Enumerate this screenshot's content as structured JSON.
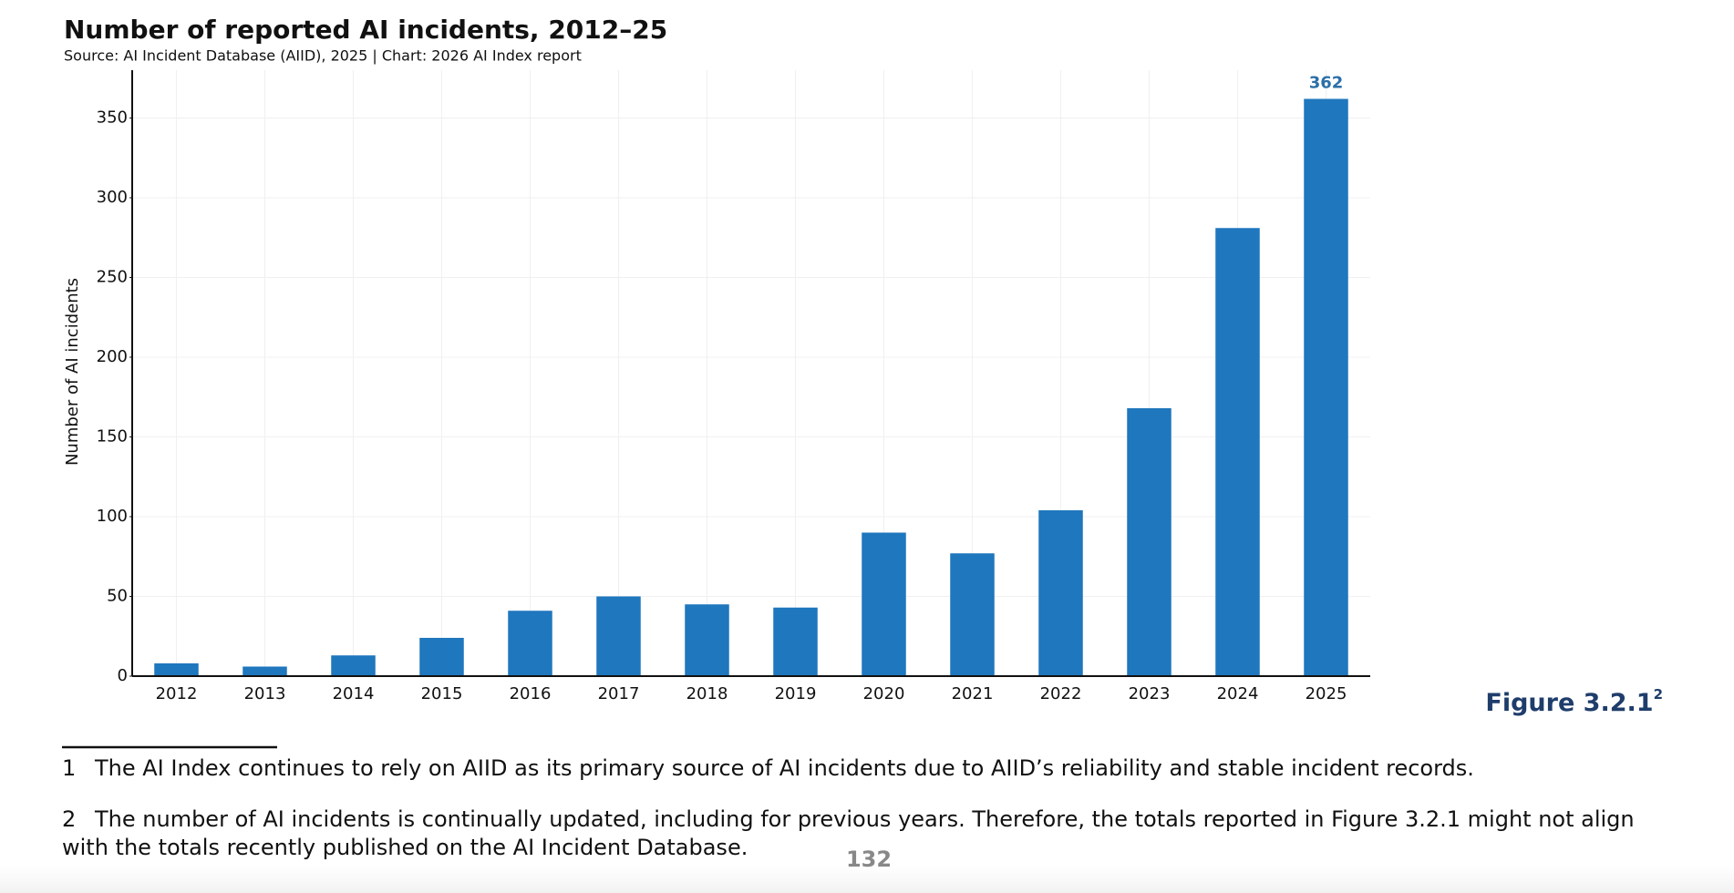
{
  "chart_data": {
    "type": "bar",
    "title": "Number of reported AI incidents, 2012–25",
    "subtitle": "Source: AI Incident Database (AIID), 2025 | Chart: 2026 AI Index report",
    "y_label": "Number of AI incidents",
    "categories": [
      "2012",
      "2013",
      "2014",
      "2015",
      "2016",
      "2017",
      "2018",
      "2019",
      "2020",
      "2021",
      "2022",
      "2023",
      "2024",
      "2025"
    ],
    "values": [
      8,
      6,
      13,
      24,
      41,
      50,
      45,
      43,
      90,
      77,
      104,
      168,
      281,
      362
    ],
    "value_labels": [
      null,
      null,
      null,
      null,
      null,
      null,
      null,
      null,
      null,
      null,
      null,
      null,
      null,
      "362"
    ],
    "color": "#1f77bd",
    "label_color": "#2a6fa8",
    "ylim": [
      0,
      380
    ],
    "yticks": [
      0,
      50,
      100,
      150,
      200,
      250,
      300,
      350
    ],
    "grid": true
  },
  "figure_label": {
    "text": "Figure 3.2.1",
    "sup": "2"
  },
  "footnotes": [
    {
      "number": "1",
      "text": "The AI Index continues to rely on AIID as its primary source of AI incidents due to AIID’s reliability and stable incident records."
    },
    {
      "number": "2",
      "text": "The number of AI incidents is continually updated, including for previous years. Therefore, the totals reported in Figure 3.2.1 might not align with the totals recently published on the AI Incident Database."
    }
  ],
  "page_number": "132"
}
